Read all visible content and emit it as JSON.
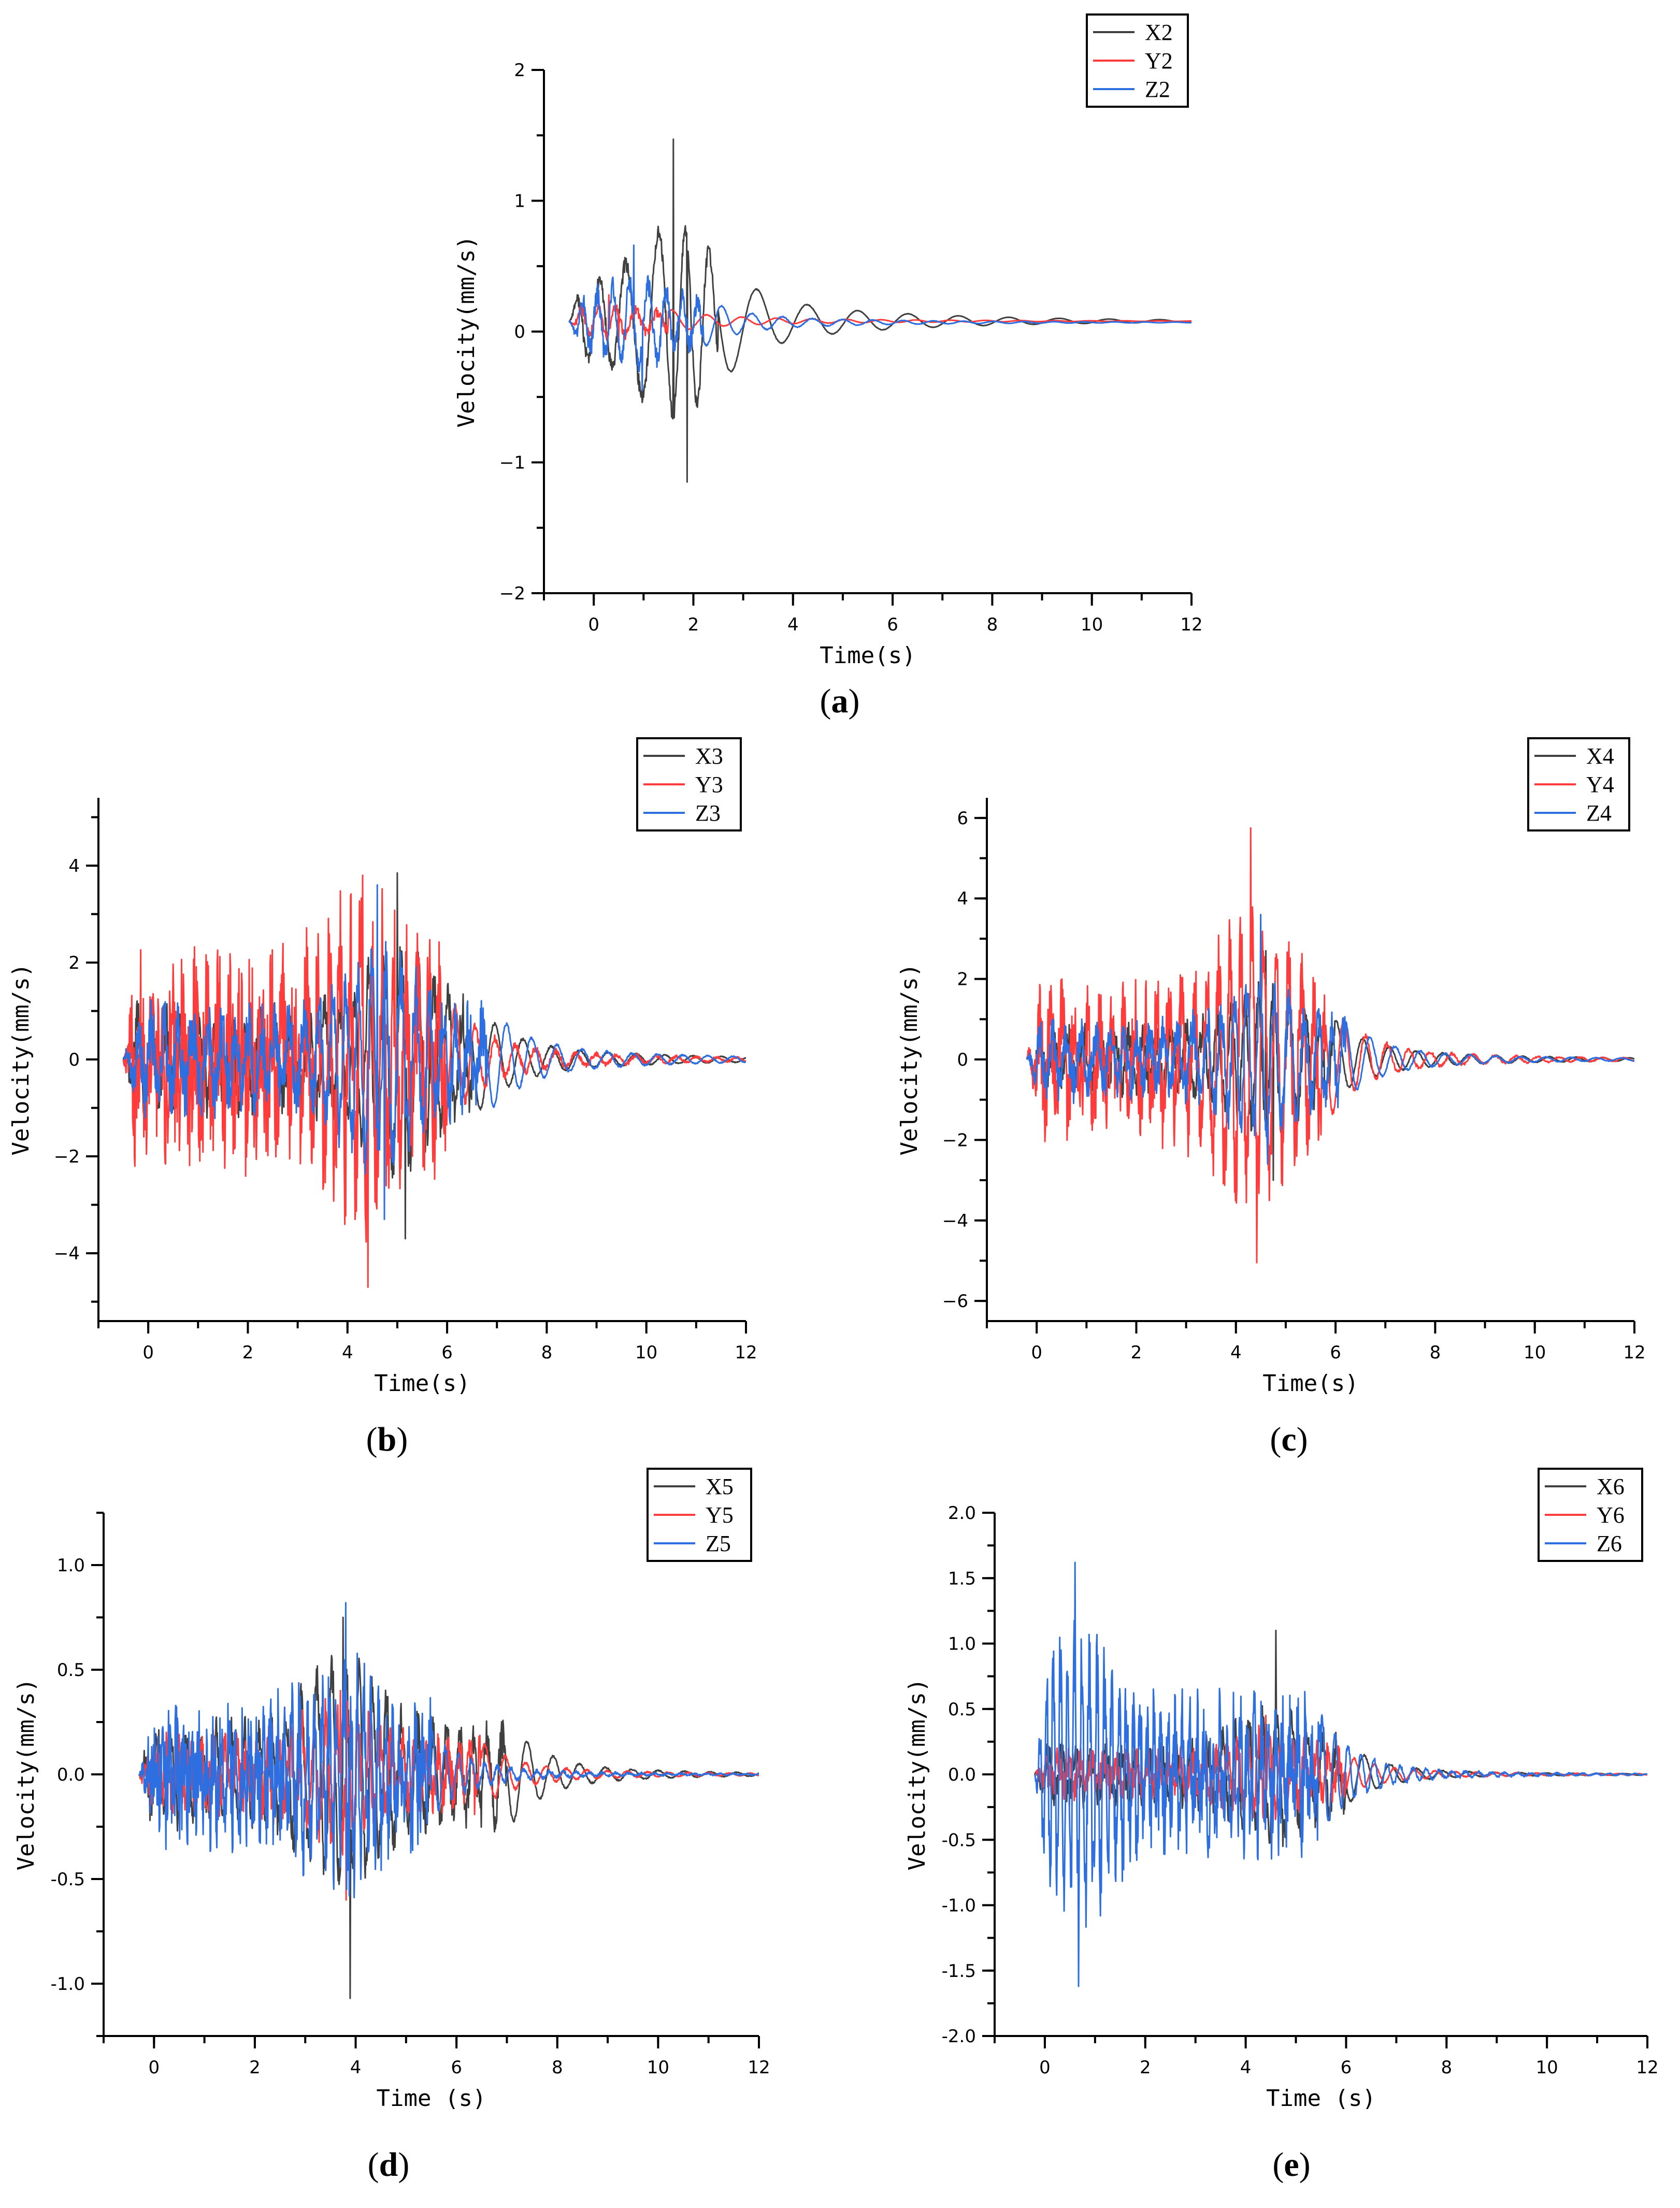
{
  "colors": {
    "X": "#404040",
    "Y": "#ff3b3b",
    "Z": "#2d6fe0"
  },
  "chart_data": [
    {
      "id": "a",
      "panel_label": "a",
      "type": "line",
      "xlabel": "Time(s)",
      "ylabel": "Velocity(mm/s)",
      "xlim": [
        -1,
        12
      ],
      "ylim": [
        -2,
        2
      ],
      "xticks": [
        0,
        2,
        4,
        6,
        8,
        10,
        12
      ],
      "xtick_labels": [
        "0",
        "2",
        "4",
        "6",
        "8",
        "10",
        "12"
      ],
      "yticks": [
        -2,
        -1,
        0,
        1,
        2
      ],
      "ytick_labels": [
        "−2",
        "−1",
        "0",
        "1",
        "2"
      ],
      "legend": [
        "X2",
        "Y2",
        "Z2"
      ],
      "legend_position": "top-right",
      "t_start": -0.5,
      "t_end": 12,
      "seed": 11,
      "series": [
        {
          "name": "X2",
          "role": "X",
          "peak": 1.47,
          "trough": -1.15,
          "peak_t": 1.6,
          "decay_t": 2.5,
          "tail_amp": 0.18,
          "offset": 0.08,
          "noise": 0.06,
          "freq": 1.8
        },
        {
          "name": "Y2",
          "role": "Y",
          "peak": 0.28,
          "trough": -0.12,
          "peak_t": 0.3,
          "decay_t": 1.5,
          "tail_amp": 0.04,
          "offset": 0.08,
          "noise": 0.04,
          "freq": 2.6
        },
        {
          "name": "Z2",
          "role": "Z",
          "peak": 0.66,
          "trough": -0.45,
          "peak_t": 0.8,
          "decay_t": 2.2,
          "tail_amp": 0.05,
          "offset": 0.07,
          "noise": 0.08,
          "freq": 3.0
        }
      ]
    },
    {
      "id": "b",
      "panel_label": "b",
      "type": "line",
      "xlabel": "Time(s)",
      "ylabel": "Velocity(mm/s)",
      "xlim": [
        -1,
        12
      ],
      "ylim": [
        -5.4,
        5.4
      ],
      "xticks": [
        0,
        2,
        4,
        6,
        8,
        10,
        12
      ],
      "xtick_labels": [
        "0",
        "2",
        "4",
        "6",
        "8",
        "10",
        "12"
      ],
      "yticks": [
        -4,
        -2,
        0,
        2,
        4
      ],
      "ytick_labels": [
        "−4",
        "−2",
        "0",
        "2",
        "4"
      ],
      "legend": [
        "X3",
        "Y3",
        "Z3"
      ],
      "legend_position": "top-right",
      "t_start": -0.5,
      "t_end": 12,
      "seed": 23,
      "series": [
        {
          "name": "X3",
          "role": "X",
          "peak": 3.85,
          "trough": -3.7,
          "peak_t": 5.0,
          "decay_t": 6.5,
          "tail_amp": 0.3,
          "offset": 0,
          "noise": 0.5,
          "freq": 3.2
        },
        {
          "name": "Y3",
          "role": "Y",
          "peak": 3.8,
          "trough": -4.7,
          "peak_t": 4.3,
          "decay_t": 6.0,
          "tail_amp": 0.25,
          "offset": 0,
          "noise": 1.6,
          "freq": 4.5
        },
        {
          "name": "Z3",
          "role": "Z",
          "peak": 3.6,
          "trough": -3.3,
          "peak_t": 4.6,
          "decay_t": 6.8,
          "tail_amp": 0.3,
          "offset": 0,
          "noise": 0.6,
          "freq": 3.6
        }
      ]
    },
    {
      "id": "c",
      "panel_label": "c",
      "type": "line",
      "xlabel": "Time(s)",
      "ylabel": "Velocity(mm/s)",
      "xlim": [
        -1,
        12
      ],
      "ylim": [
        -6.5,
        6.5
      ],
      "xticks": [
        0,
        2,
        4,
        6,
        8,
        10,
        12
      ],
      "xtick_labels": [
        "0",
        "2",
        "4",
        "6",
        "8",
        "10",
        "12"
      ],
      "yticks": [
        -6,
        -4,
        -2,
        0,
        2,
        4,
        6
      ],
      "ytick_labels": [
        "−6",
        "−4",
        "−2",
        "0",
        "2",
        "4",
        "6"
      ],
      "legend": [
        "X4",
        "Y4",
        "Z4"
      ],
      "legend_position": "top-right",
      "t_start": -0.2,
      "t_end": 12,
      "seed": 37,
      "series": [
        {
          "name": "X4",
          "role": "X",
          "peak": 2.7,
          "trough": -3.0,
          "peak_t": 4.6,
          "decay_t": 6.0,
          "tail_amp": 0.25,
          "offset": 0,
          "noise": 0.4,
          "freq": 3.4
        },
        {
          "name": "Y4",
          "role": "Y",
          "peak": 5.75,
          "trough": -5.05,
          "peak_t": 4.3,
          "decay_t": 5.8,
          "tail_amp": 0.25,
          "offset": 0,
          "noise": 1.1,
          "freq": 4.2
        },
        {
          "name": "Z4",
          "role": "Z",
          "peak": 3.6,
          "trough": -2.6,
          "peak_t": 4.5,
          "decay_t": 6.2,
          "tail_amp": 0.2,
          "offset": 0,
          "noise": 0.5,
          "freq": 3.6
        }
      ]
    },
    {
      "id": "d",
      "panel_label": "d",
      "type": "line",
      "xlabel": "Time (s)",
      "ylabel": "Velocity(mm/s)",
      "xlim": [
        -1,
        12
      ],
      "ylim": [
        -1.25,
        1.25
      ],
      "xticks": [
        0,
        2,
        4,
        6,
        8,
        10,
        12
      ],
      "xtick_labels": [
        "0",
        "2",
        "4",
        "6",
        "8",
        "10",
        "12"
      ],
      "yticks": [
        -1.0,
        -0.5,
        0.0,
        0.5,
        1.0
      ],
      "ytick_labels": [
        "-1.0",
        "-0.5",
        "0.0",
        "0.5",
        "1.0"
      ],
      "legend": [
        "X5",
        "Y5",
        "Z5"
      ],
      "legend_position": "top-right",
      "t_start": -0.3,
      "t_end": 12,
      "seed": 41,
      "series": [
        {
          "name": "X5",
          "role": "X",
          "peak": 0.75,
          "trough": -1.07,
          "peak_t": 3.75,
          "decay_t": 7.0,
          "tail_amp": 0.04,
          "offset": 0,
          "noise": 0.1,
          "freq": 3.5
        },
        {
          "name": "Y5",
          "role": "Y",
          "peak": 0.4,
          "trough": -0.6,
          "peak_t": 3.7,
          "decay_t": 6.5,
          "tail_amp": 0.03,
          "offset": 0,
          "noise": 0.12,
          "freq": 4.5
        },
        {
          "name": "Z5",
          "role": "Z",
          "peak": 0.82,
          "trough": -0.58,
          "peak_t": 3.8,
          "decay_t": 5.5,
          "tail_amp": 0.02,
          "offset": 0,
          "noise": 0.25,
          "freq": 7.0
        }
      ]
    },
    {
      "id": "e",
      "panel_label": "e",
      "type": "line",
      "xlabel": "Time (s)",
      "ylabel": "Velocity(mm/s)",
      "xlim": [
        -1,
        12
      ],
      "ylim": [
        -2,
        2
      ],
      "xticks": [
        0,
        2,
        4,
        6,
        8,
        10,
        12
      ],
      "xtick_labels": [
        "0",
        "2",
        "4",
        "6",
        "8",
        "10",
        "12"
      ],
      "yticks": [
        -2.0,
        -1.5,
        -1.0,
        -0.5,
        0.0,
        0.5,
        1.0,
        1.5,
        2.0
      ],
      "ytick_labels": [
        "-2.0",
        "-1.5",
        "-1.0",
        "-0.5",
        "0.0",
        "0.5",
        "1.0",
        "1.5",
        "2.0"
      ],
      "legend": [
        "X6",
        "Y6",
        "Z6"
      ],
      "legend_position": "top-right",
      "t_start": -0.2,
      "t_end": 12,
      "seed": 53,
      "series": [
        {
          "name": "X6",
          "role": "X",
          "peak": 1.1,
          "trough": -0.55,
          "peak_t": 4.6,
          "decay_t": 6.0,
          "tail_amp": 0.03,
          "offset": 0,
          "noise": 0.12,
          "freq": 3.5
        },
        {
          "name": "Y6",
          "role": "Y",
          "peak": 0.45,
          "trough": -0.5,
          "peak_t": 4.4,
          "decay_t": 6.0,
          "tail_amp": 0.03,
          "offset": 0,
          "noise": 0.12,
          "freq": 4.5
        },
        {
          "name": "Z6",
          "role": "Z",
          "peak": 1.62,
          "trough": -1.62,
          "peak_t": 0.6,
          "decay_t": 5.5,
          "tail_amp": 0.04,
          "offset": 0,
          "noise": 0.35,
          "freq": 7.0
        }
      ]
    }
  ]
}
